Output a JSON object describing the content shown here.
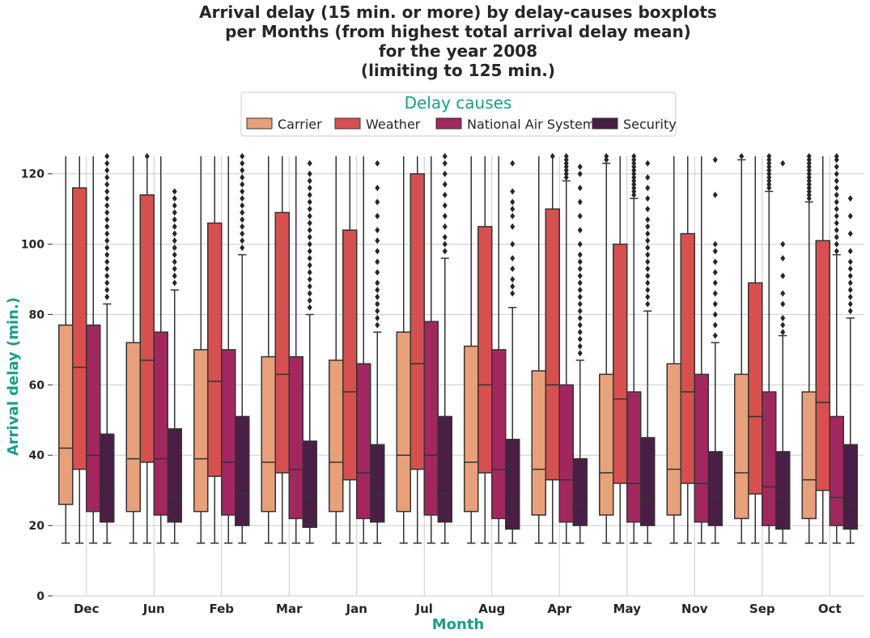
{
  "chart_data": {
    "type": "boxplot",
    "title_lines": [
      "Arrival delay (15 min. or more) by delay-causes boxplots",
      "per Months (from highest total arrival delay mean)",
      "for the year 2008",
      "(limiting to 125 min.)"
    ],
    "xlabel": "Month",
    "ylabel": "Arrival delay (min.)",
    "ylim": [
      0,
      125
    ],
    "yticks": [
      0,
      20,
      40,
      60,
      80,
      100,
      120
    ],
    "grid": true,
    "legend": {
      "title": "Delay causes",
      "placement": "top-center"
    },
    "categories": [
      "Dec",
      "Jun",
      "Feb",
      "Mar",
      "Jan",
      "Jul",
      "Aug",
      "Apr",
      "May",
      "Nov",
      "Sep",
      "Oct"
    ],
    "series": [
      {
        "name": "Carrier",
        "color": "#e8a07a",
        "boxes": [
          {
            "whislo": 15,
            "q1": 26,
            "med": 42,
            "q3": 77,
            "whishi": 125
          },
          {
            "whislo": 15,
            "q1": 24,
            "med": 39,
            "q3": 72,
            "whishi": 125
          },
          {
            "whislo": 15,
            "q1": 24,
            "med": 39,
            "q3": 70,
            "whishi": 125
          },
          {
            "whislo": 15,
            "q1": 24,
            "med": 38,
            "q3": 68,
            "whishi": 125
          },
          {
            "whislo": 15,
            "q1": 24,
            "med": 38,
            "q3": 67,
            "whishi": 125
          },
          {
            "whislo": 15,
            "q1": 24,
            "med": 40,
            "q3": 75,
            "whishi": 125
          },
          {
            "whislo": 15,
            "q1": 24,
            "med": 38,
            "q3": 71,
            "whishi": 125
          },
          {
            "whislo": 15,
            "q1": 23,
            "med": 36,
            "q3": 64,
            "whishi": 125
          },
          {
            "whislo": 15,
            "q1": 23,
            "med": 35,
            "q3": 63,
            "whishi": 123
          },
          {
            "whislo": 15,
            "q1": 23,
            "med": 36,
            "q3": 66,
            "whishi": 125
          },
          {
            "whislo": 15,
            "q1": 22,
            "med": 35,
            "q3": 63,
            "whishi": 124
          },
          {
            "whislo": 15,
            "q1": 22,
            "med": 33,
            "q3": 58,
            "whishi": 112
          }
        ]
      },
      {
        "name": "Weather",
        "color": "#d6504f",
        "boxes": [
          {
            "whislo": 15,
            "q1": 36,
            "med": 65,
            "q3": 116,
            "whishi": 125
          },
          {
            "whislo": 15,
            "q1": 38,
            "med": 67,
            "q3": 114,
            "whishi": 125
          },
          {
            "whislo": 15,
            "q1": 34,
            "med": 61,
            "q3": 106,
            "whishi": 125
          },
          {
            "whislo": 15,
            "q1": 35,
            "med": 63,
            "q3": 109,
            "whishi": 125
          },
          {
            "whislo": 15,
            "q1": 33,
            "med": 58,
            "q3": 104,
            "whishi": 125
          },
          {
            "whislo": 15,
            "q1": 36,
            "med": 66,
            "q3": 120,
            "whishi": 125
          },
          {
            "whislo": 15,
            "q1": 35,
            "med": 60,
            "q3": 105,
            "whishi": 125
          },
          {
            "whislo": 15,
            "q1": 33,
            "med": 60,
            "q3": 110,
            "whishi": 125
          },
          {
            "whislo": 15,
            "q1": 32,
            "med": 56,
            "q3": 100,
            "whishi": 125
          },
          {
            "whislo": 15,
            "q1": 32,
            "med": 58,
            "q3": 103,
            "whishi": 125
          },
          {
            "whislo": 15,
            "q1": 29,
            "med": 51,
            "q3": 89,
            "whishi": 125
          },
          {
            "whislo": 15,
            "q1": 30,
            "med": 55,
            "q3": 101,
            "whishi": 125
          }
        ]
      },
      {
        "name": "National Air System",
        "color": "#a3275f",
        "boxes": [
          {
            "whislo": 15,
            "q1": 24,
            "med": 40,
            "q3": 77,
            "whishi": 125
          },
          {
            "whislo": 15,
            "q1": 23,
            "med": 39,
            "q3": 75,
            "whishi": 125
          },
          {
            "whislo": 15,
            "q1": 23,
            "med": 38,
            "q3": 70,
            "whishi": 125
          },
          {
            "whislo": 15,
            "q1": 22,
            "med": 36,
            "q3": 68,
            "whishi": 125
          },
          {
            "whislo": 15,
            "q1": 22,
            "med": 35,
            "q3": 66,
            "whishi": 125
          },
          {
            "whislo": 15,
            "q1": 23,
            "med": 40,
            "q3": 78,
            "whishi": 125
          },
          {
            "whislo": 15,
            "q1": 22,
            "med": 36,
            "q3": 70,
            "whishi": 125
          },
          {
            "whislo": 15,
            "q1": 21,
            "med": 33,
            "q3": 60,
            "whishi": 118
          },
          {
            "whislo": 15,
            "q1": 21,
            "med": 32,
            "q3": 58,
            "whishi": 113
          },
          {
            "whislo": 15,
            "q1": 21,
            "med": 32,
            "q3": 63,
            "whishi": 125
          },
          {
            "whislo": 15,
            "q1": 20,
            "med": 31,
            "q3": 58,
            "whishi": 115
          },
          {
            "whislo": 15,
            "q1": 20,
            "med": 28,
            "q3": 51,
            "whishi": 97
          }
        ]
      },
      {
        "name": "Security",
        "color": "#4a1f45",
        "boxes": [
          {
            "whislo": 15,
            "q1": 21,
            "med": 30,
            "q3": 46,
            "whishi": 83
          },
          {
            "whislo": 15,
            "q1": 21,
            "med": 28,
            "q3": 47.5,
            "whishi": 87
          },
          {
            "whislo": 15,
            "q1": 20,
            "med": 29,
            "q3": 51,
            "whishi": 97
          },
          {
            "whislo": 15,
            "q1": 19.5,
            "med": 28,
            "q3": 44,
            "whishi": 80
          },
          {
            "whislo": 15,
            "q1": 21,
            "med": 29,
            "q3": 43,
            "whishi": 75
          },
          {
            "whislo": 15,
            "q1": 21,
            "med": 29,
            "q3": 51,
            "whishi": 96
          },
          {
            "whislo": 15,
            "q1": 19,
            "med": 26,
            "q3": 44.5,
            "whishi": 82
          },
          {
            "whislo": 15,
            "q1": 20,
            "med": 26,
            "q3": 39,
            "whishi": 67
          },
          {
            "whislo": 15,
            "q1": 20,
            "med": 28,
            "q3": 45,
            "whishi": 81
          },
          {
            "whislo": 15,
            "q1": 20,
            "med": 28,
            "q3": 41,
            "whishi": 72
          },
          {
            "whislo": 15,
            "q1": 19,
            "med": 28,
            "q3": 41,
            "whishi": 74
          },
          {
            "whislo": 15,
            "q1": 19,
            "med": 26,
            "q3": 43,
            "whishi": 79
          }
        ]
      }
    ],
    "outliers": [
      {
        "category": "Dec",
        "series": "Security",
        "values": [
          85,
          87,
          89,
          91,
          93,
          95,
          97,
          99,
          101,
          103,
          105,
          107,
          109,
          111,
          113,
          115,
          117,
          119,
          121,
          123,
          125
        ]
      },
      {
        "category": "Jun",
        "series": "Security",
        "values": [
          89,
          91,
          93,
          95,
          97,
          99,
          101,
          103,
          105,
          107,
          109,
          111,
          113,
          115
        ]
      },
      {
        "category": "Jun",
        "series": "Weather",
        "values": [
          125
        ]
      },
      {
        "category": "Feb",
        "series": "Security",
        "values": [
          99,
          101,
          103,
          105,
          107,
          109,
          111,
          113,
          115,
          117,
          119,
          121,
          123,
          125
        ]
      },
      {
        "category": "Mar",
        "series": "Security",
        "values": [
          82,
          84,
          86,
          88,
          90,
          92,
          94,
          96,
          98,
          100,
          102,
          104,
          106,
          108,
          110,
          112,
          114,
          116,
          118,
          120,
          123
        ]
      },
      {
        "category": "Jan",
        "series": "Security",
        "values": [
          77,
          79,
          81,
          83,
          85,
          87,
          89,
          92,
          95,
          98,
          101,
          104,
          108,
          112,
          116,
          123
        ]
      },
      {
        "category": "Jul",
        "series": "Security",
        "values": [
          98,
          100,
          102,
          105,
          108,
          111,
          114,
          117,
          120,
          123,
          125
        ]
      },
      {
        "category": "Aug",
        "series": "Security",
        "values": [
          86,
          88,
          90,
          93,
          96,
          100,
          105,
          108,
          110,
          112,
          115,
          123
        ]
      },
      {
        "category": "Apr",
        "series": "Weather",
        "values": [
          125
        ]
      },
      {
        "category": "Apr",
        "series": "National Air System",
        "values": [
          119,
          120,
          121,
          122,
          123,
          124,
          125
        ]
      },
      {
        "category": "Apr",
        "series": "Security",
        "values": [
          69,
          71,
          73,
          75,
          77,
          79,
          81,
          83,
          85,
          87,
          89,
          91,
          93,
          95,
          97,
          100,
          104,
          108,
          112,
          116,
          120,
          122
        ]
      },
      {
        "category": "May",
        "series": "Carrier",
        "values": [
          124,
          125
        ]
      },
      {
        "category": "May",
        "series": "National Air System",
        "values": [
          114,
          115,
          116,
          117,
          118,
          119,
          120,
          121,
          122,
          123,
          124,
          125
        ]
      },
      {
        "category": "May",
        "series": "Security",
        "values": [
          83,
          85,
          87,
          89,
          91,
          93,
          95,
          97,
          99,
          101,
          103,
          105,
          107,
          110,
          113,
          116,
          119,
          123
        ]
      },
      {
        "category": "Nov",
        "series": "Security",
        "values": [
          74,
          77,
          80,
          83,
          86,
          89,
          92,
          95,
          98,
          100,
          114,
          124
        ]
      },
      {
        "category": "Sep",
        "series": "Carrier",
        "values": [
          125
        ]
      },
      {
        "category": "Sep",
        "series": "National Air System",
        "values": [
          116,
          117,
          118,
          119,
          120,
          121,
          122,
          123,
          124,
          125
        ]
      },
      {
        "category": "Sep",
        "series": "Security",
        "values": [
          75,
          77,
          79,
          83,
          86,
          91,
          96,
          100,
          123
        ]
      },
      {
        "category": "Oct",
        "series": "Carrier",
        "values": [
          113,
          114,
          115,
          116,
          117,
          118,
          119,
          120,
          121,
          122,
          123,
          124,
          125
        ]
      },
      {
        "category": "Oct",
        "series": "National Air System",
        "values": [
          98,
          100,
          102,
          104,
          106,
          108,
          110,
          112,
          114,
          116,
          118,
          120,
          122,
          124,
          125
        ]
      },
      {
        "category": "Oct",
        "series": "Security",
        "values": [
          81,
          83,
          85,
          87,
          89,
          91,
          93,
          95,
          98,
          103,
          108,
          113
        ]
      }
    ]
  }
}
